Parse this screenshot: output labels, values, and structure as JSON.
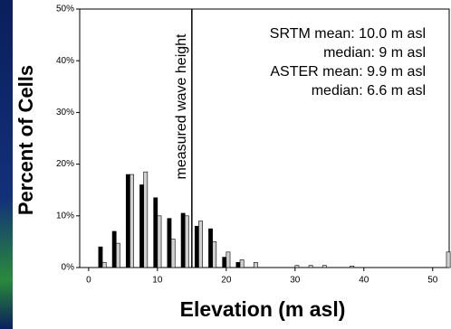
{
  "chart_data": {
    "type": "bar",
    "y_label": "Percent of Cells",
    "x_label": "Elevation (m asl)",
    "annotations": [
      "SRTM mean: 10.0 m asl",
      "median:  9 m asl",
      "ASTER mean:  9.9 m asl",
      "median:  6.6 m asl"
    ],
    "marker_label": "measured wave height",
    "marker_x": 15,
    "x": [
      2,
      4,
      6,
      8,
      10,
      12,
      14,
      16,
      18,
      20,
      22,
      24,
      26,
      28,
      30,
      32,
      34,
      36,
      38,
      40,
      42,
      44,
      46,
      48,
      50,
      52
    ],
    "series": [
      {
        "color": "#000000",
        "values": [
          4,
          7,
          18,
          16,
          13.5,
          9.5,
          10.5,
          8,
          7.5,
          2,
          1,
          0,
          0,
          0,
          0,
          0,
          0,
          0,
          0,
          0,
          0,
          0,
          0,
          0,
          0,
          0
        ]
      },
      {
        "color": "#d0d0d0",
        "values": [
          1,
          4.7,
          18,
          18.5,
          10,
          5.5,
          10,
          9,
          5,
          3,
          1.5,
          1,
          0,
          0,
          0.4,
          0.4,
          0.4,
          0,
          0.3,
          0,
          0,
          0,
          0,
          0,
          0,
          3
        ]
      }
    ],
    "xlim": [
      -1.3,
      52.4
    ],
    "xticks": [
      0,
      10,
      20,
      30,
      40,
      50
    ],
    "ylim": [
      0,
      50
    ],
    "yticks": [
      {
        "value": 0,
        "label": "0%"
      },
      {
        "value": 10,
        "label": "10%"
      },
      {
        "value": 20,
        "label": "20%"
      },
      {
        "value": 30,
        "label": "30%"
      },
      {
        "value": 40,
        "label": "40%"
      },
      {
        "value": 50,
        "label": "50%"
      }
    ]
  }
}
